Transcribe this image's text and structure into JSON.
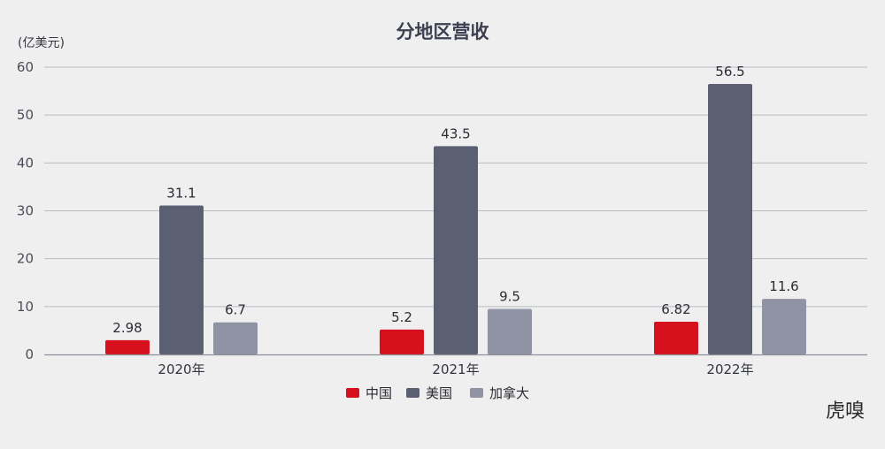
{
  "chart_data": {
    "type": "bar",
    "title": "分地区营收",
    "unit_label": "(亿美元)",
    "categories": [
      "2020年",
      "2021年",
      "2022年"
    ],
    "series": [
      {
        "name": "中国",
        "color": "#d7101e",
        "values": [
          2.98,
          5.2,
          6.82
        ],
        "labels": [
          "2.98",
          "5.2",
          "6.82"
        ]
      },
      {
        "name": "美国",
        "color": "#5b5f72",
        "values": [
          31.1,
          43.5,
          56.5
        ],
        "labels": [
          "31.1",
          "43.5",
          "56.5"
        ]
      },
      {
        "name": "加拿大",
        "color": "#8f93a3",
        "values": [
          6.7,
          9.5,
          11.6
        ],
        "labels": [
          "6.7",
          "9.5",
          "11.6"
        ]
      }
    ],
    "yticks": [
      "0",
      "10",
      "20",
      "30",
      "40",
      "50",
      "60"
    ],
    "ylim": [
      0,
      60
    ],
    "grid": true,
    "legend_position": "bottom-center"
  },
  "watermark": "虎嗅"
}
